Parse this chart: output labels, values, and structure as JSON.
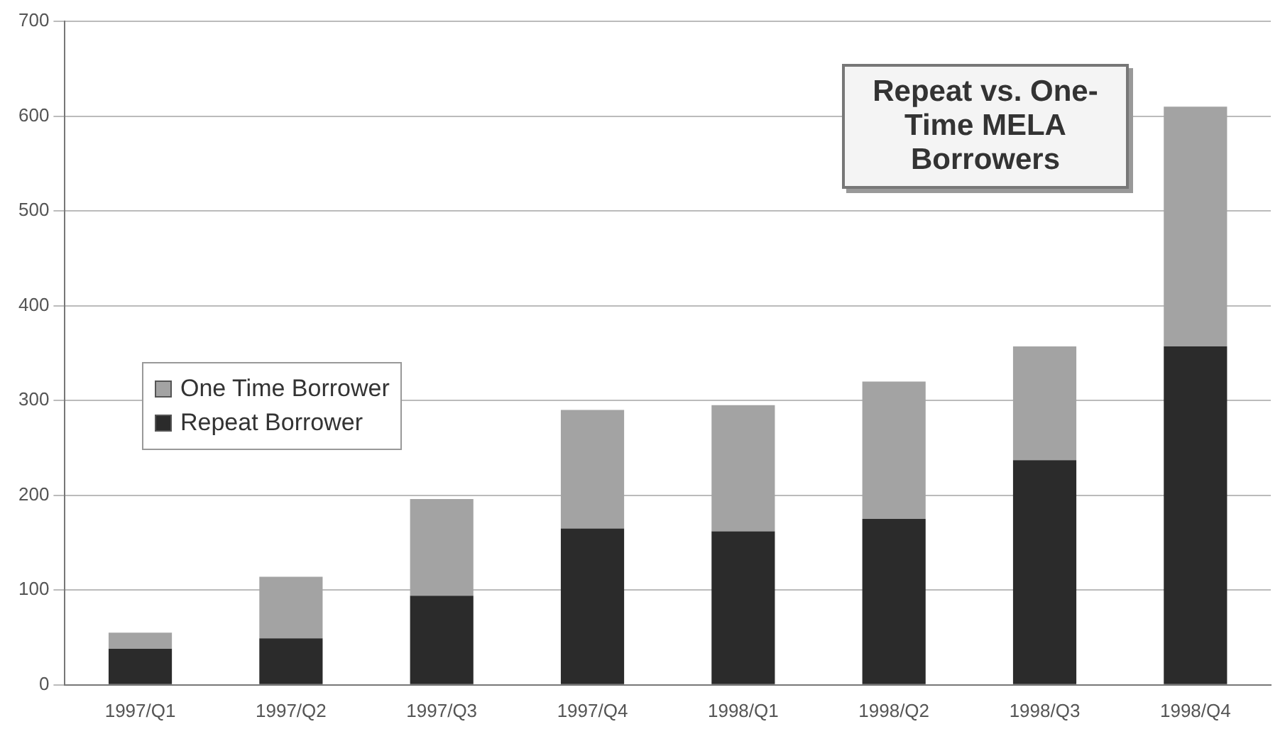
{
  "chart_data": {
    "type": "bar",
    "title": "Repeat vs. One-Time MELA Borrowers",
    "categories": [
      "1997/Q1",
      "1997/Q2",
      "1997/Q3",
      "1997/Q4",
      "1998/Q1",
      "1998/Q2",
      "1998/Q3",
      "1998/Q4"
    ],
    "series": [
      {
        "name": "Repeat Borrower",
        "color": "#2b2b2b",
        "values": [
          38,
          49,
          94,
          165,
          162,
          175,
          237,
          357
        ]
      },
      {
        "name": "One Time Borrower",
        "color": "#a3a3a3",
        "values": [
          17,
          65,
          102,
          125,
          133,
          145,
          120,
          253
        ]
      }
    ],
    "stacked": true,
    "ylim": [
      0,
      700
    ],
    "yticks": [
      0,
      100,
      200,
      300,
      400,
      500,
      600,
      700
    ],
    "grid": "y",
    "legend": "left"
  }
}
